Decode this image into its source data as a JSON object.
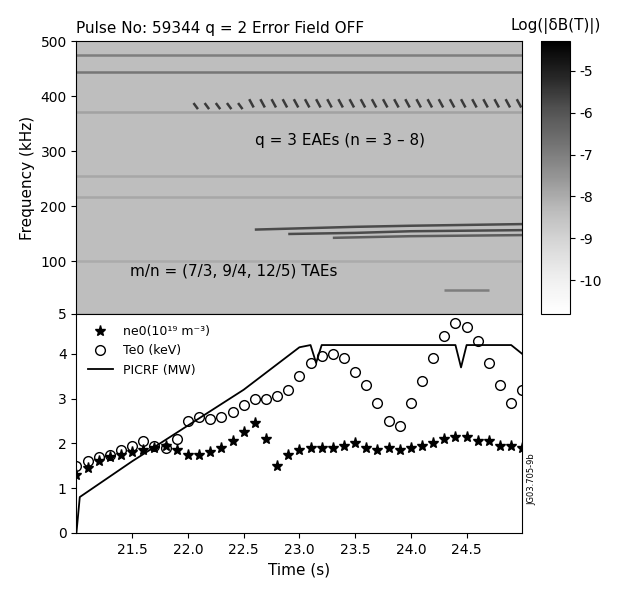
{
  "chart_data": [
    {
      "type": "spectrogram",
      "title": "Pulse No: 59344 q = 2 Error Field OFF",
      "ylabel": "Frequency (kHz)",
      "xlim": [
        21.0,
        25.0
      ],
      "ylim": [
        5,
        500
      ],
      "yticks": [
        5,
        100,
        200,
        300,
        400,
        500
      ],
      "tick_labels": "y",
      "annotations": [
        "q = 3 EAEs (n = 3 – 8)",
        "m/n = (7/3, 9/4, 12/5) TAEs"
      ],
      "colorbar_label": "Log(|δB(T)|)",
      "colorbar_lim": [
        -10.8,
        -4.3
      ],
      "colorbar_ticks": [
        -10,
        -9,
        -8,
        -7,
        -6,
        -5
      ],
      "background_level": -8.4,
      "series": [
        {
          "level": -7.0,
          "x": [
            21.0,
            25.0
          ],
          "values": [
            475,
            475
          ]
        },
        {
          "level": -6.8,
          "x": [
            21.0,
            25.0
          ],
          "values": [
            445,
            445
          ]
        },
        {
          "level": -7.8,
          "x": [
            21.0,
            25.0
          ],
          "values": [
            372,
            372
          ]
        },
        {
          "level": -7.9,
          "x": [
            21.0,
            25.0
          ],
          "values": [
            255,
            255
          ]
        },
        {
          "level": -7.9,
          "x": [
            21.0,
            25.0
          ],
          "values": [
            218,
            218
          ]
        },
        {
          "level": -8.0,
          "x": [
            21.0,
            25.0
          ],
          "values": [
            100,
            100
          ]
        },
        {
          "level": -7.0,
          "x": [
            24.3,
            24.7
          ],
          "values": [
            48,
            48
          ]
        },
        {
          "level": -5.8,
          "x": [
            22.6,
            23.5,
            24.0,
            25.0
          ],
          "values": [
            158,
            163,
            165,
            168
          ]
        },
        {
          "level": -5.8,
          "x": [
            22.9,
            23.5,
            24.0,
            25.0
          ],
          "values": [
            150,
            152,
            155,
            157
          ]
        },
        {
          "level": -6.2,
          "x": [
            23.3,
            24.0,
            25.0
          ],
          "values": [
            143,
            146,
            148
          ]
        },
        {
          "level": -5.5,
          "x": [
            22.05,
            22.09,
            22.09,
            22.15,
            22.19,
            22.19,
            22.25,
            22.29,
            22.29,
            22.35,
            22.39,
            22.39,
            22.45,
            22.49,
            22.49,
            22.55,
            22.59,
            22.59,
            22.65,
            22.69,
            22.69,
            22.75,
            22.79,
            22.79,
            22.85,
            22.89,
            22.89,
            22.95,
            22.99,
            22.99,
            23.05,
            23.09,
            23.09,
            23.15,
            23.19,
            23.19,
            23.25,
            23.29,
            23.29,
            23.35,
            23.39,
            23.39,
            23.45,
            23.49,
            23.49,
            23.55,
            23.59,
            23.59,
            23.65,
            23.69,
            23.69,
            23.75,
            23.79,
            23.79,
            23.85,
            23.89,
            23.89,
            23.95,
            23.99,
            23.99,
            24.05,
            24.09,
            24.09,
            24.15,
            24.19,
            24.19,
            24.25,
            24.29,
            24.29,
            24.35,
            24.39,
            24.39,
            24.45,
            24.49,
            24.49,
            24.55,
            24.59,
            24.59,
            24.65,
            24.69,
            24.69,
            24.75,
            24.79,
            24.79,
            24.85,
            24.89,
            24.89,
            24.95,
            24.99,
            24.99
          ],
          "values": [
            388,
            377,
            null,
            388,
            377,
            null,
            388,
            377,
            null,
            388,
            377,
            null,
            388,
            377,
            null,
            395,
            380,
            null,
            395,
            380,
            null,
            395,
            380,
            null,
            395,
            380,
            null,
            395,
            380,
            null,
            395,
            380,
            null,
            395,
            380,
            null,
            395,
            380,
            null,
            395,
            380,
            null,
            395,
            380,
            null,
            395,
            380,
            null,
            395,
            380,
            null,
            395,
            380,
            null,
            395,
            380,
            null,
            395,
            380,
            null,
            395,
            380,
            null,
            395,
            380,
            null,
            395,
            380,
            null,
            395,
            380,
            null,
            395,
            380,
            null,
            395,
            380,
            null,
            395,
            380,
            null,
            395,
            380,
            null,
            395,
            380,
            null,
            395,
            380,
            null
          ]
        }
      ]
    },
    {
      "type": "line",
      "xlabel": "Time (s)",
      "xlim": [
        21.0,
        25.0
      ],
      "xticks": [
        21.5,
        22.0,
        22.5,
        23.0,
        23.5,
        24.0,
        24.5
      ],
      "ylim": [
        0,
        4.9
      ],
      "yticks": [
        0,
        1,
        2,
        3,
        4
      ],
      "legend": "upper left",
      "annotations": [
        "JG03.705-9b"
      ],
      "series": [
        {
          "name": "ne0(10¹⁹ m⁻³)",
          "type": "scatter",
          "marker": "*",
          "color": "#000000",
          "x": [
            21.0,
            21.1,
            21.2,
            21.3,
            21.4,
            21.5,
            21.6,
            21.7,
            21.8,
            21.9,
            22.0,
            22.1,
            22.2,
            22.3,
            22.4,
            22.5,
            22.6,
            22.7,
            22.8,
            22.9,
            23.0,
            23.1,
            23.2,
            23.3,
            23.4,
            23.5,
            23.6,
            23.7,
            23.8,
            23.9,
            24.0,
            24.1,
            24.2,
            24.3,
            24.4,
            24.5,
            24.6,
            24.7,
            24.8,
            24.9,
            25.0
          ],
          "values": [
            1.3,
            1.45,
            1.6,
            1.7,
            1.75,
            1.8,
            1.85,
            1.9,
            1.95,
            1.85,
            1.75,
            1.75,
            1.8,
            1.9,
            2.05,
            2.25,
            2.45,
            2.1,
            1.5,
            1.75,
            1.85,
            1.9,
            1.9,
            1.9,
            1.95,
            2.0,
            1.9,
            1.85,
            1.9,
            1.85,
            1.9,
            1.95,
            2.0,
            2.1,
            2.15,
            2.15,
            2.05,
            2.05,
            1.95,
            1.95,
            1.9
          ]
        },
        {
          "name": "Te0 (keV)",
          "type": "scatter",
          "marker": "o",
          "color": "#000000",
          "x": [
            21.0,
            21.1,
            21.2,
            21.3,
            21.4,
            21.5,
            21.6,
            21.7,
            21.8,
            21.9,
            22.0,
            22.1,
            22.2,
            22.3,
            22.4,
            22.5,
            22.6,
            22.7,
            22.8,
            22.9,
            23.0,
            23.1,
            23.2,
            23.3,
            23.4,
            23.5,
            23.6,
            23.7,
            23.8,
            23.9,
            24.0,
            24.1,
            24.2,
            24.3,
            24.4,
            24.5,
            24.6,
            24.7,
            24.8,
            24.9,
            25.0
          ],
          "values": [
            1.5,
            1.6,
            1.7,
            1.75,
            1.85,
            1.95,
            2.05,
            1.95,
            1.9,
            2.1,
            2.5,
            2.6,
            2.55,
            2.6,
            2.7,
            2.85,
            3.0,
            3.0,
            3.05,
            3.2,
            3.5,
            3.8,
            3.95,
            4.0,
            3.9,
            3.6,
            3.3,
            2.9,
            2.5,
            2.4,
            2.9,
            3.4,
            3.9,
            4.4,
            4.7,
            4.6,
            4.3,
            3.8,
            3.3,
            2.9,
            3.2
          ]
        },
        {
          "name": "PICRF (MW)",
          "type": "line",
          "line_style": "solid",
          "color": "#000000",
          "x": [
            21.0,
            21.03,
            21.5,
            22.0,
            22.5,
            23.0,
            23.1,
            23.15,
            23.2,
            23.5,
            24.0,
            24.4,
            24.45,
            24.5,
            24.9,
            25.0
          ],
          "values": [
            0,
            0.8,
            1.6,
            2.4,
            3.2,
            4.15,
            4.2,
            3.8,
            4.2,
            4.2,
            4.2,
            4.2,
            3.7,
            4.2,
            4.2,
            4.0
          ]
        }
      ]
    }
  ]
}
